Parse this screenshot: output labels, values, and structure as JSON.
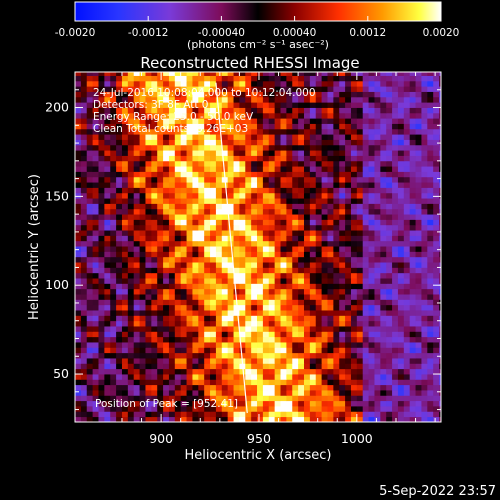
{
  "chart_data": {
    "type": "heatmap",
    "title": "Reconstructed RHESSI Image",
    "xlabel": "Heliocentric X (arcsec)",
    "ylabel": "Heliocentric Y (arcsec)",
    "xlim": [
      856,
      1043
    ],
    "ylim": [
      23,
      220
    ],
    "x_ticks": [
      900,
      950,
      1000
    ],
    "y_ticks": [
      50,
      100,
      150,
      200
    ],
    "colorbar": {
      "min": -0.002,
      "max": 0.002,
      "ticks": [
        "-0.0020",
        "-0.0012",
        "-0.00040",
        "0.00040",
        "0.0012",
        "0.0020"
      ],
      "unit_label": "(photons cm⁻² s⁻¹ asec⁻²)",
      "colormap": "rainbow-to-hot"
    },
    "annotations": {
      "time_range": "24-Jul-2016 10:08:04.000 to 10:12:04.000",
      "detectors": "Detectors: 3F 8F  Att 0",
      "energy_range": "Energy Range: 25.0 - 50.0 keV",
      "clean_counts": "Clean     Total counts: 6.26E+03",
      "peak_position": "Position of Peak = [952.41]"
    },
    "limb_line": {
      "x": [
        928,
        944
      ],
      "y": [
        214,
        28
      ]
    },
    "bright_band": {
      "x_center_range": [
        905,
        960
      ],
      "note": "bright emission band left of X=990"
    }
  },
  "footer": {
    "date": "5-Sep-2022 23:57"
  },
  "colors": {
    "background": "#000000",
    "text": "#ffffff"
  }
}
